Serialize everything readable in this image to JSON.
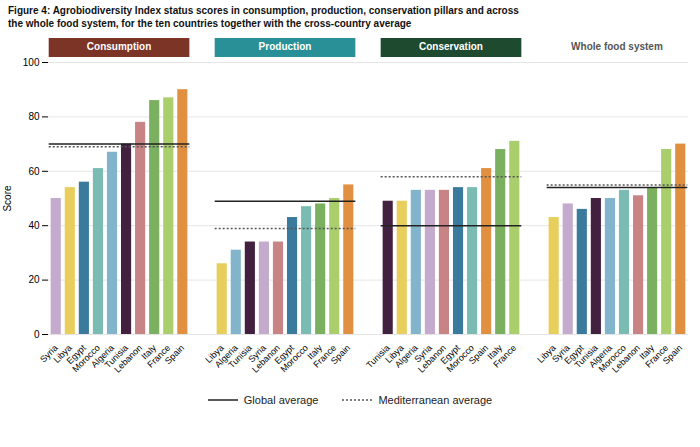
{
  "chart_data": {
    "type": "bar",
    "title": "Figure 4: Agrobiodiversity Index status scores in consumption, production, conservation pillars and across",
    "subtitle": "the whole food system, for the ten countries together with the cross-country average",
    "ylabel": "Score",
    "ylim": [
      0,
      100
    ],
    "yticks": [
      0,
      20,
      40,
      60,
      80,
      100
    ],
    "grid": true,
    "legend": "bottom",
    "reference_series": [
      {
        "name": "Global average",
        "color": "#222222",
        "line_style": "solid"
      },
      {
        "name": "Mediterranean average",
        "color": "#555555",
        "line_style": "dotted"
      }
    ],
    "groups": [
      {
        "name": "Consumption",
        "header_color": "#7B3426",
        "header_text_color": "white",
        "categories": [
          "Syria",
          "Libya",
          "Egypt",
          "Morocco",
          "Algeria",
          "Tunisia",
          "Lebanon",
          "Italy",
          "France",
          "Spain"
        ],
        "values": [
          50,
          54,
          56,
          61,
          67,
          70,
          78,
          86,
          87,
          90
        ],
        "colors": [
          "#C4AACC",
          "#E8CE5C",
          "#3A7A9C",
          "#7ABCB4",
          "#82B4CC",
          "#422040",
          "#C88484",
          "#7AB060",
          "#AACE6C",
          "#E09040"
        ],
        "reference_lines": [
          {
            "name": "Global average",
            "value": 70
          },
          {
            "name": "Mediterranean average",
            "value": 69
          }
        ]
      },
      {
        "name": "Production",
        "header_color": "#2A9098",
        "header_text_color": "white",
        "categories": [
          "Libya",
          "Algeria",
          "Tunisia",
          "Syria",
          "Lebanon",
          "Egypt",
          "Morocco",
          "Italy",
          "France",
          "Spain"
        ],
        "values": [
          26,
          31,
          34,
          34,
          34,
          43,
          47,
          48,
          50,
          55
        ],
        "colors": [
          "#E8CE5C",
          "#82B4CC",
          "#422040",
          "#C4AACC",
          "#C88484",
          "#3A7A9C",
          "#7ABCB4",
          "#7AB060",
          "#AACE6C",
          "#E09040"
        ],
        "reference_lines": [
          {
            "name": "Global average",
            "value": 49
          },
          {
            "name": "Mediterranean average",
            "value": 39
          }
        ]
      },
      {
        "name": "Conservation",
        "header_color": "#1E4A30",
        "header_text_color": "white",
        "categories": [
          "Tunisia",
          "Libya",
          "Algeria",
          "Syria",
          "Lebanon",
          "Egypt",
          "Morocco",
          "Spain",
          "Italy",
          "France"
        ],
        "values": [
          49,
          49,
          53,
          53,
          53,
          54,
          54,
          61,
          68,
          71
        ],
        "colors": [
          "#422040",
          "#E8CE5C",
          "#82B4CC",
          "#C4AACC",
          "#C88484",
          "#3A7A9C",
          "#7ABCB4",
          "#E09040",
          "#7AB060",
          "#AACE6C"
        ],
        "reference_lines": [
          {
            "name": "Global average",
            "value": 40
          },
          {
            "name": "Mediterranean average",
            "value": 58
          }
        ]
      },
      {
        "name": "Whole food system",
        "header_color": null,
        "header_text_color": "#555555",
        "categories": [
          "Libya",
          "Syria",
          "Egypt",
          "Tunisia",
          "Algeria",
          "Morocco",
          "Lebanon",
          "Italy",
          "France",
          "Spain"
        ],
        "values": [
          43,
          48,
          46,
          50,
          50,
          53,
          51,
          54,
          68,
          70
        ],
        "colors": [
          "#E8CE5C",
          "#C4AACC",
          "#3A7A9C",
          "#422040",
          "#82B4CC",
          "#7ABCB4",
          "#C88484",
          "#7AB060",
          "#AACE6C",
          "#E09040"
        ],
        "reference_lines": [
          {
            "name": "Global average",
            "value": 54
          },
          {
            "name": "Mediterranean average",
            "value": 55
          }
        ]
      }
    ]
  }
}
